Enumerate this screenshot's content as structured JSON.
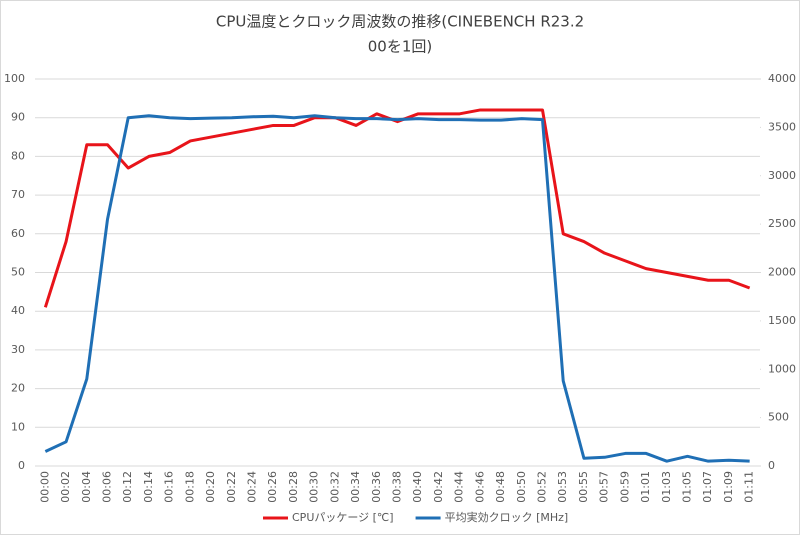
{
  "chart_data": {
    "type": "line",
    "title_lines": [
      "CPU温度とクロック周波数の推移(CINEBENCH R23.2",
      "00を1回)"
    ],
    "categories": [
      "00:00",
      "00:02",
      "00:04",
      "00:06",
      "00:12",
      "00:14",
      "00:16",
      "00:18",
      "00:20",
      "00:22",
      "00:24",
      "00:26",
      "00:28",
      "00:30",
      "00:32",
      "00:34",
      "00:36",
      "00:38",
      "00:40",
      "00:42",
      "00:44",
      "00:46",
      "00:48",
      "00:50",
      "00:52",
      "00:53",
      "00:55",
      "00:57",
      "00:59",
      "01:01",
      "01:03",
      "01:05",
      "01:07",
      "01:09",
      "01:11"
    ],
    "series": [
      {
        "name": "CPUパッケージ [℃]",
        "color": "#e8141a",
        "axis": "y",
        "values": [
          41,
          58,
          83,
          83,
          77,
          80,
          81,
          84,
          85,
          86,
          87,
          88,
          88,
          90,
          90,
          88,
          91,
          89,
          91,
          91,
          91,
          92,
          92,
          92,
          92,
          60,
          58,
          55,
          53,
          51,
          50,
          49,
          48,
          48,
          46
        ]
      },
      {
        "name": "平均実効クロック [MHz]",
        "color": "#1f6fb5",
        "axis": "y2",
        "values": [
          150,
          250,
          900,
          2550,
          3600,
          3620,
          3600,
          3590,
          3595,
          3600,
          3610,
          3615,
          3600,
          3620,
          3600,
          3590,
          3590,
          3580,
          3590,
          3580,
          3580,
          3575,
          3575,
          3590,
          3580,
          880,
          80,
          90,
          130,
          130,
          50,
          100,
          50,
          60,
          50
        ]
      }
    ],
    "ylim": [
      0,
      100
    ],
    "yticks": [
      0,
      10,
      20,
      30,
      40,
      50,
      60,
      70,
      80,
      90,
      100
    ],
    "y2lim": [
      0,
      4000
    ],
    "y2ticks": [
      0,
      500,
      1000,
      1500,
      2000,
      2500,
      3000,
      3500,
      4000
    ],
    "grid": true,
    "legend": "bottom"
  }
}
